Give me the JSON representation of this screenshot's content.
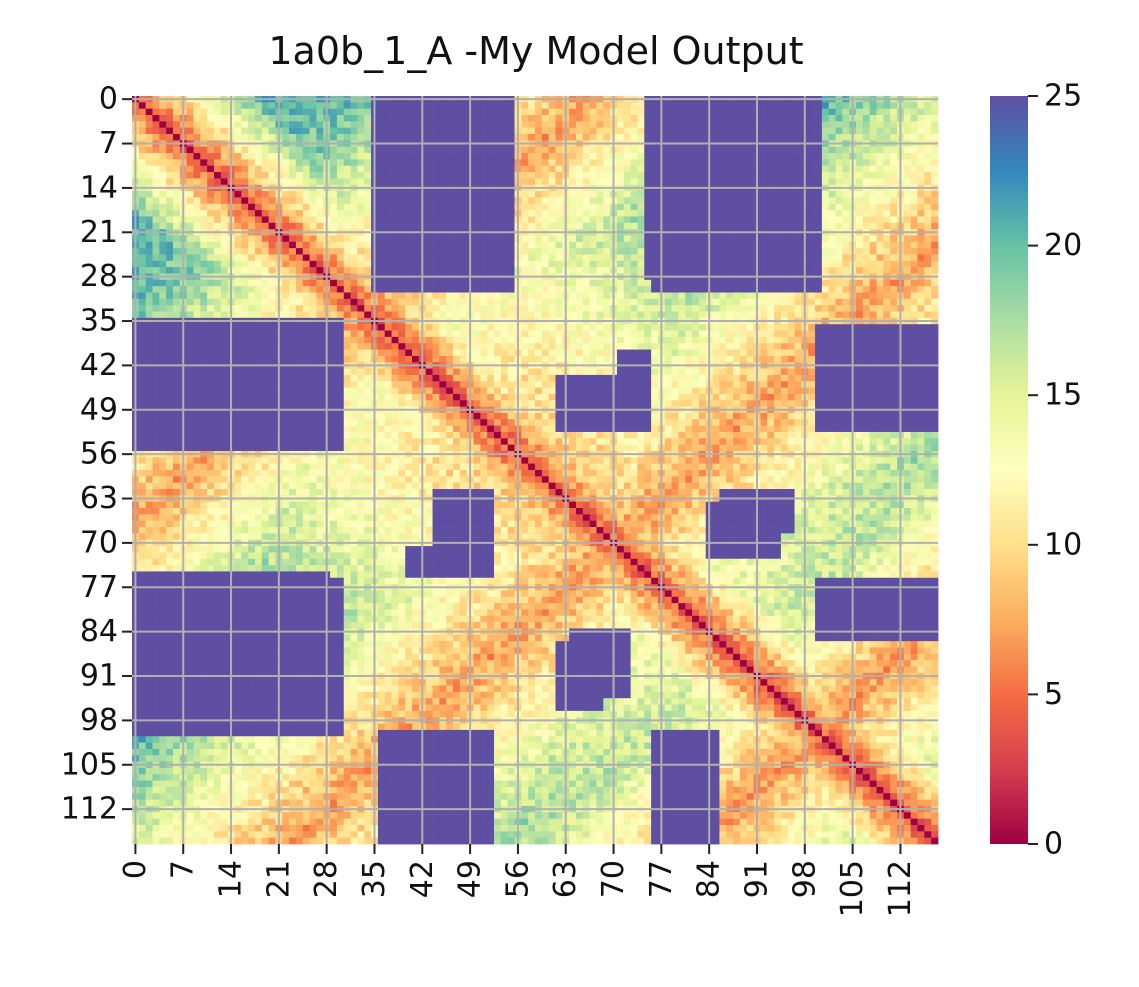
{
  "chart_data": {
    "type": "heatmap",
    "title": "1a0b_1_A -My Model Output",
    "size": 118,
    "x_tick_labels": [
      "0",
      "7",
      "14",
      "21",
      "28",
      "35",
      "42",
      "49",
      "56",
      "63",
      "70",
      "77",
      "84",
      "91",
      "98",
      "105",
      "112"
    ],
    "y_tick_labels": [
      "0",
      "7",
      "14",
      "21",
      "28",
      "35",
      "42",
      "49",
      "56",
      "63",
      "70",
      "77",
      "84",
      "91",
      "98",
      "105",
      "112"
    ],
    "colorbar": {
      "range": [
        0,
        25
      ],
      "ticks": [
        "0",
        "5",
        "10",
        "15",
        "20",
        "25"
      ],
      "colormap": [
        "#9e0142",
        "#d53e4f",
        "#f46d43",
        "#fdae61",
        "#fee08b",
        "#ffffbf",
        "#e6f598",
        "#abdda4",
        "#66c2a5",
        "#3288bd",
        "#5e4fa2"
      ]
    },
    "grid": true,
    "grid_color": "#b0b0b0",
    "value_description": "Pairwise residue distance matrix (0 = red on diagonal, 25+ = purple for distant pairs)"
  }
}
